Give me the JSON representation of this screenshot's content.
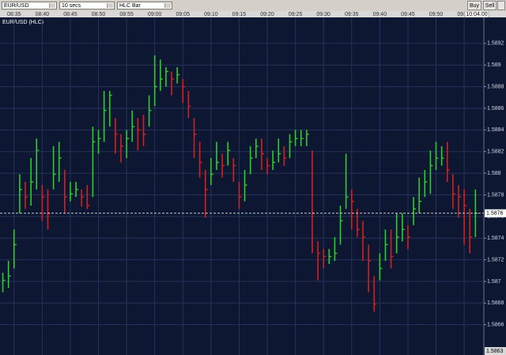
{
  "toolbar": {
    "symbol": "EUR/USD",
    "interval": "10 secs",
    "style": "HLC Bar",
    "buy": "Buy",
    "sell": "Sell"
  },
  "chart_data": {
    "type": "hlc",
    "title": "EUR/USD (HLC)",
    "x": [
      "08:33",
      "08:34",
      "08:35",
      "08:36",
      "08:37",
      "08:38",
      "08:39",
      "08:40",
      "08:41",
      "08:42",
      "08:43",
      "08:44",
      "08:45",
      "08:46",
      "08:47",
      "08:48",
      "08:49",
      "08:50",
      "08:51",
      "08:52",
      "08:53",
      "08:54",
      "08:55",
      "08:56",
      "08:57",
      "08:58",
      "08:59",
      "09:00",
      "09:01",
      "09:02",
      "09:03",
      "09:04",
      "09:05",
      "09:06",
      "09:07",
      "09:08",
      "09:09",
      "09:10",
      "09:11",
      "09:12",
      "09:13",
      "09:14",
      "09:15",
      "09:16",
      "09:17",
      "09:18",
      "09:19",
      "09:20",
      "09:21",
      "09:22",
      "09:23",
      "09:24",
      "09:25",
      "09:26",
      "09:27",
      "09:28",
      "09:29",
      "09:30",
      "09:31",
      "09:32",
      "09:33",
      "09:34",
      "09:35",
      "09:36",
      "09:37",
      "09:38",
      "09:39",
      "09:40",
      "09:41",
      "09:42",
      "09:43",
      "09:44",
      "09:45",
      "09:46",
      "09:47",
      "09:48",
      "09:49",
      "09:50",
      "09:51",
      "09:52",
      "09:53",
      "09:54",
      "09:55",
      "09:56",
      "09:57"
    ],
    "high": [
      1.58708,
      1.58719,
      1.58748,
      1.58799,
      1.58792,
      1.58814,
      1.58832,
      1.58789,
      1.58785,
      1.58825,
      1.58829,
      1.58803,
      1.58792,
      1.58792,
      1.58785,
      1.58789,
      1.58843,
      1.5884,
      1.58876,
      1.58876,
      1.58851,
      1.58836,
      1.5884,
      1.58858,
      1.58851,
      1.58854,
      1.58872,
      1.58909,
      1.58905,
      1.58898,
      1.58894,
      1.58898,
      1.58887,
      1.58876,
      1.58851,
      1.58829,
      1.58803,
      1.58814,
      1.58829,
      1.58818,
      1.58829,
      1.58814,
      1.58792,
      1.58803,
      1.58825,
      1.58832,
      1.58832,
      1.58814,
      1.58821,
      1.58832,
      1.58825,
      1.58836,
      1.5884,
      1.5884,
      1.5884,
      1.58821,
      1.58737,
      1.5873,
      1.5873,
      1.58741,
      1.5877,
      1.58818,
      1.58785,
      1.58767,
      1.58756,
      1.58734,
      1.58705,
      1.58726,
      1.58748,
      1.58748,
      1.58763,
      1.58763,
      1.58752,
      1.58778,
      1.58796,
      1.58803,
      1.58821,
      1.58829,
      1.58825,
      1.58829,
      1.58799,
      1.58789,
      1.58785,
      1.58767,
      1.58785
    ],
    "low": [
      1.5869,
      1.58694,
      1.58712,
      1.58763,
      1.58767,
      1.5877,
      1.58785,
      1.58756,
      1.58748,
      1.58785,
      1.58792,
      1.58763,
      1.58774,
      1.58778,
      1.58769,
      1.58767,
      1.58778,
      1.58818,
      1.58829,
      1.58843,
      1.58818,
      1.5881,
      1.58814,
      1.58829,
      1.58821,
      1.58825,
      1.58843,
      1.58862,
      1.58876,
      1.5888,
      1.58872,
      1.58883,
      1.58865,
      1.58851,
      1.58814,
      1.58796,
      1.58759,
      1.58789,
      1.58803,
      1.58796,
      1.58807,
      1.58792,
      1.58767,
      1.58774,
      1.58799,
      1.58814,
      1.58803,
      1.58799,
      1.58803,
      1.5881,
      1.58807,
      1.58814,
      1.58825,
      1.58825,
      1.58825,
      1.58726,
      1.58701,
      1.58712,
      1.58716,
      1.58719,
      1.58734,
      1.58767,
      1.58748,
      1.58741,
      1.58719,
      1.5869,
      1.58672,
      1.58701,
      1.58719,
      1.58712,
      1.58726,
      1.58737,
      1.5873,
      1.58752,
      1.58763,
      1.58778,
      1.58781,
      1.58803,
      1.58807,
      1.58792,
      1.58767,
      1.58759,
      1.58734,
      1.58726,
      1.58741
    ],
    "close": [
      1.58701,
      1.58705,
      1.58734,
      1.58785,
      1.58778,
      1.58792,
      1.58821,
      1.58778,
      1.58763,
      1.58799,
      1.58814,
      1.58778,
      1.58781,
      1.58785,
      1.58778,
      1.5877,
      1.58829,
      1.58832,
      1.58858,
      1.58872,
      1.58836,
      1.58825,
      1.58832,
      1.58843,
      1.5884,
      1.58836,
      1.58858,
      1.5888,
      1.58887,
      1.58894,
      1.58887,
      1.58891,
      1.5888,
      1.58862,
      1.58836,
      1.5881,
      1.58785,
      1.58799,
      1.5881,
      1.58807,
      1.58821,
      1.58807,
      1.58778,
      1.58789,
      1.58814,
      1.58825,
      1.58818,
      1.58807,
      1.5881,
      1.58818,
      1.58814,
      1.58829,
      1.58832,
      1.58832,
      1.58836,
      1.58763,
      1.58726,
      1.58723,
      1.58723,
      1.58726,
      1.58756,
      1.58778,
      1.58774,
      1.58748,
      1.58741,
      1.58719,
      1.58679,
      1.58712,
      1.58734,
      1.58723,
      1.58741,
      1.58748,
      1.58741,
      1.58767,
      1.58774,
      1.58792,
      1.58807,
      1.58814,
      1.58814,
      1.58803,
      1.58781,
      1.58778,
      1.5877,
      1.58741,
      1.58763
    ],
    "up_color": "#2ecc2e",
    "down_color": "#d42020",
    "xlim": [
      "08:32:30",
      "09:58:30"
    ],
    "xticks": [
      "08:35",
      "08:40",
      "08:45",
      "08:50",
      "08:55",
      "09:00",
      "09:05",
      "09:10",
      "09:15",
      "09:20",
      "09:25",
      "09:30",
      "09:35",
      "09:40",
      "09:45",
      "09:50",
      "09:55"
    ],
    "ylim": [
      1.58632,
      1.58944
    ],
    "yticks": [
      1.5866,
      1.5868,
      1.587,
      1.5872,
      1.5874,
      1.5876,
      1.5878,
      1.588,
      1.5882,
      1.5884,
      1.5886,
      1.5888,
      1.589,
      1.5892
    ],
    "grid": true,
    "last_price": {
      "value": 1.58763,
      "label": "1.5876"
    },
    "cursor_price": 1.5863,
    "current_time": "10:04:00"
  }
}
